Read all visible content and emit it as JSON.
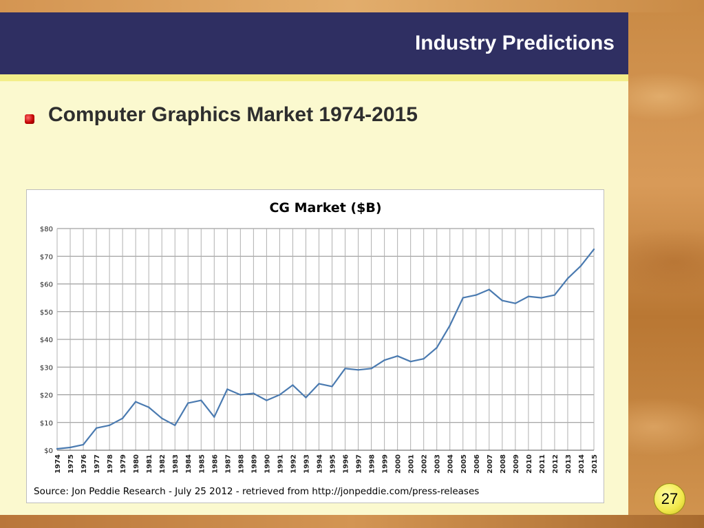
{
  "slide": {
    "title": "Industry Predictions",
    "bullet": "Computer Graphics Market 1974-2015",
    "page_number": "27"
  },
  "chart_data": {
    "type": "line",
    "title": "CG Market ($B)",
    "source": "Source: Jon Peddie Research - July 25 2012 - retrieved from http://jonpeddie.com/press-releases",
    "xlabel": "",
    "ylabel": "",
    "ylim": [
      0,
      80
    ],
    "yticks": [
      "$0",
      "$10",
      "$20",
      "$30",
      "$40",
      "$50",
      "$60",
      "$70",
      "$80"
    ],
    "grid": true,
    "line_color": "#4a7ab0",
    "categories": [
      "1974",
      "1975",
      "1976",
      "1977",
      "1978",
      "1979",
      "1980",
      "1981",
      "1982",
      "1983",
      "1984",
      "1985",
      "1986",
      "1987",
      "1988",
      "1989",
      "1990",
      "1991",
      "1992",
      "1993",
      "1994",
      "1995",
      "1996",
      "1997",
      "1998",
      "1999",
      "2000",
      "2001",
      "2002",
      "2003",
      "2004",
      "2005",
      "2006",
      "2007",
      "2008",
      "2009",
      "2010",
      "2011",
      "2012",
      "2013",
      "2014",
      "2015"
    ],
    "values": [
      0.5,
      1,
      2,
      8,
      9,
      11.5,
      17.5,
      15.5,
      11.5,
      9,
      17,
      18,
      12,
      22,
      20,
      20.5,
      18,
      20,
      23.5,
      19,
      24,
      23,
      29.5,
      29,
      29.5,
      32.5,
      34,
      32,
      33,
      37,
      45,
      55,
      56,
      58,
      54,
      53,
      55.5,
      55,
      56,
      62,
      66.5,
      72.5
    ]
  }
}
